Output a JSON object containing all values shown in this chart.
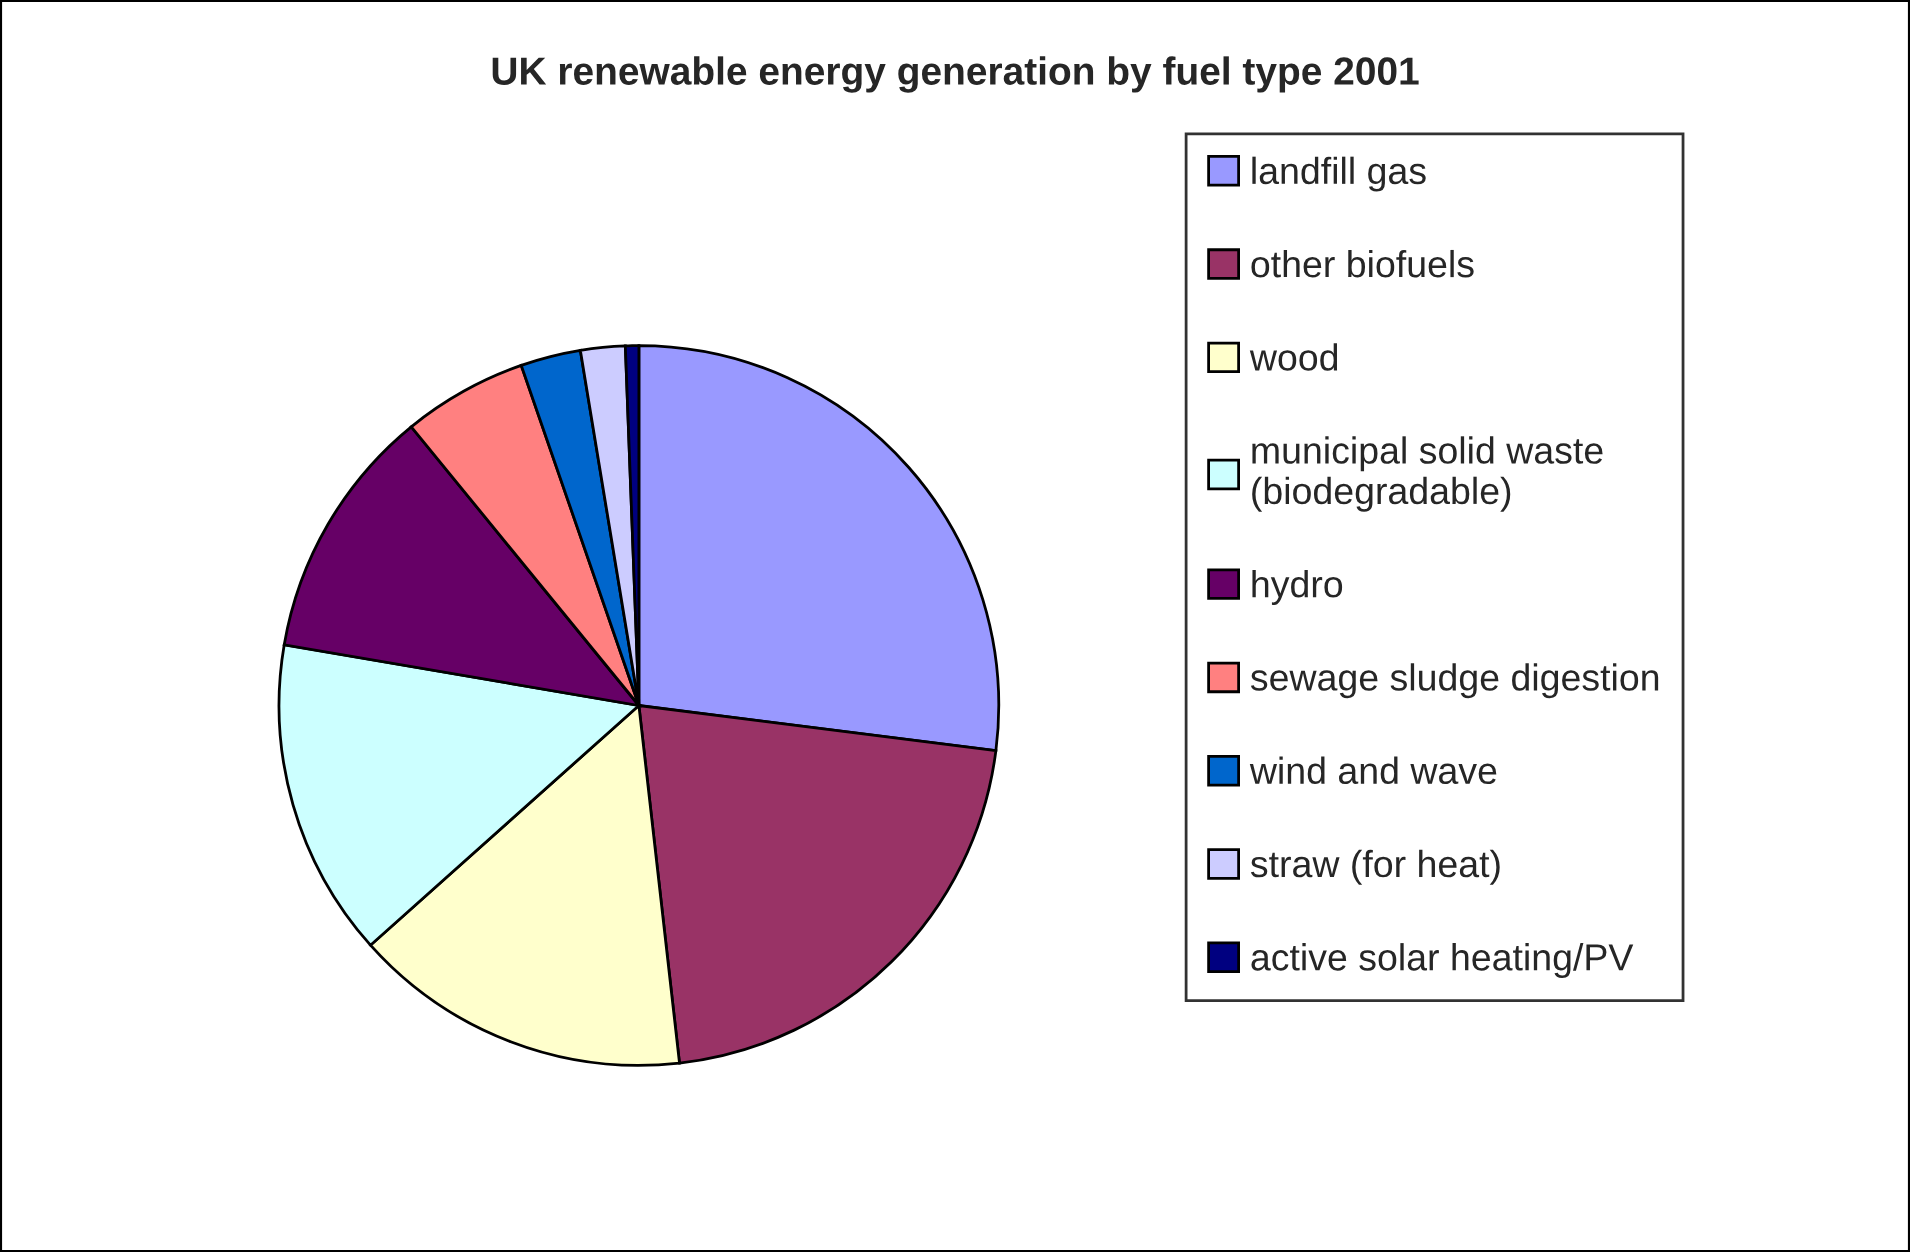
{
  "chart_data": {
    "type": "pie",
    "title": "UK renewable energy generation by fuel type 2001",
    "categories": [
      "landfill gas",
      "other biofuels",
      "wood",
      "municipal solid waste\n(biodegradable)",
      "hydro",
      "sewage sludge digestion",
      "wind and wave",
      "straw (for heat)",
      "active solar heating/PV"
    ],
    "values": [
      27.0,
      21.2,
      15.2,
      14.3,
      11.4,
      5.6,
      2.7,
      2.0,
      0.6
    ],
    "colors": [
      "#9999ff",
      "#993366",
      "#ffffcc",
      "#ccffff",
      "#660066",
      "#ff8080",
      "#0066cc",
      "#ccccff",
      "#000080"
    ],
    "legend": "right"
  }
}
